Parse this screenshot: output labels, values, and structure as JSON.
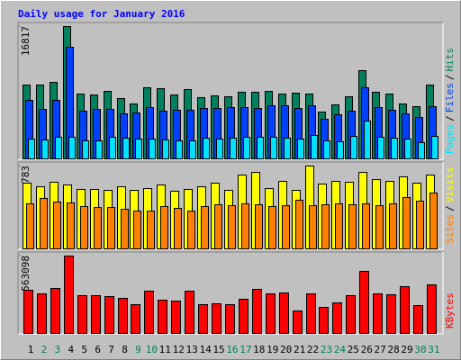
{
  "title": "Daily usage for January 2016",
  "chart_data": [
    {
      "type": "bar",
      "ylim": [
        0,
        16817
      ],
      "yticks": [
        16817
      ],
      "legend_separator": "/",
      "series": [
        {
          "name": "Pages",
          "color": "#00E0FF",
          "values": [
            2517,
            2402,
            2746,
            2746,
            2288,
            2288,
            2746,
            2631,
            2517,
            2517,
            2402,
            2288,
            2288,
            2631,
            2517,
            2631,
            2746,
            2746,
            2746,
            2631,
            2517,
            2974,
            2288,
            2174,
            2860,
            4805,
            2746,
            2631,
            2517,
            2059,
            2860
          ]
        },
        {
          "name": "Files",
          "color": "#0040FF",
          "values": [
            7436,
            6292,
            7436,
            14186,
            6063,
            6292,
            6292,
            5720,
            5834,
            6521,
            6063,
            6178,
            6178,
            6406,
            6406,
            6521,
            6521,
            6406,
            6750,
            6750,
            6406,
            6750,
            5034,
            5606,
            6063,
            9038,
            6521,
            6178,
            5720,
            5262,
            6635
          ]
        },
        {
          "name": "Hits",
          "color": "#00805C",
          "values": [
            9381,
            9381,
            9724,
            16817,
            8237,
            8122,
            8580,
            7665,
            6978,
            9038,
            8923,
            8122,
            8809,
            7779,
            8008,
            7894,
            8466,
            8466,
            8580,
            8237,
            8351,
            8237,
            5949,
            6864,
            7894,
            11211,
            8466,
            8237,
            6978,
            6635,
            9381
          ]
        }
      ]
    },
    {
      "type": "bar",
      "ylim": [
        0,
        783
      ],
      "yticks": [
        783
      ],
      "legend_separator": "/",
      "series": [
        {
          "name": "Sites",
          "color": "#FF8000",
          "values": [
            426,
            477,
            443,
            434,
            400,
            391,
            391,
            374,
            357,
            357,
            400,
            383,
            357,
            400,
            417,
            408,
            426,
            417,
            400,
            408,
            460,
            408,
            417,
            426,
            417,
            426,
            408,
            426,
            485,
            451,
            528
          ]
        },
        {
          "name": "Visits",
          "color": "#FFFF00",
          "values": [
            621,
            587,
            630,
            604,
            562,
            562,
            553,
            587,
            553,
            570,
            604,
            545,
            562,
            587,
            621,
            553,
            698,
            723,
            570,
            638,
            553,
            783,
            613,
            638,
            630,
            723,
            655,
            638,
            681,
            621,
            698
          ]
        }
      ]
    },
    {
      "type": "bar",
      "ylim": [
        0,
        563098
      ],
      "yticks": [
        563098
      ],
      "legend_separator": "/",
      "categories": [
        "1",
        "2",
        "3",
        "4",
        "5",
        "6",
        "7",
        "8",
        "9",
        "10",
        "11",
        "12",
        "13",
        "14",
        "15",
        "16",
        "17",
        "18",
        "19",
        "20",
        "21",
        "22",
        "23",
        "24",
        "25",
        "26",
        "27",
        "28",
        "29",
        "30",
        "31"
      ],
      "category_colors": [
        "#000000",
        "#00805C",
        "#00805C",
        "#000000",
        "#000000",
        "#000000",
        "#000000",
        "#000000",
        "#00805C",
        "#00805C",
        "#000000",
        "#000000",
        "#000000",
        "#000000",
        "#000000",
        "#00805C",
        "#00805C",
        "#000000",
        "#000000",
        "#000000",
        "#000000",
        "#000000",
        "#00805C",
        "#00805C",
        "#000000",
        "#000000",
        "#000000",
        "#000000",
        "#000000",
        "#00805C",
        "#00805C"
      ],
      "series": [
        {
          "name": "KBytes",
          "color": "#FF0000",
          "values": [
            314304,
            288112,
            327400,
            563098,
            275016,
            275016,
            268468,
            255372,
            209536,
            307756,
            242276,
            235728,
            307756,
            209536,
            216084,
            209536,
            248824,
            320852,
            288112,
            294660,
            163700,
            288112,
            189892,
            222632,
            275016,
            451812,
            288112,
            281564,
            340496,
            202988,
            353592
          ]
        }
      ]
    }
  ]
}
